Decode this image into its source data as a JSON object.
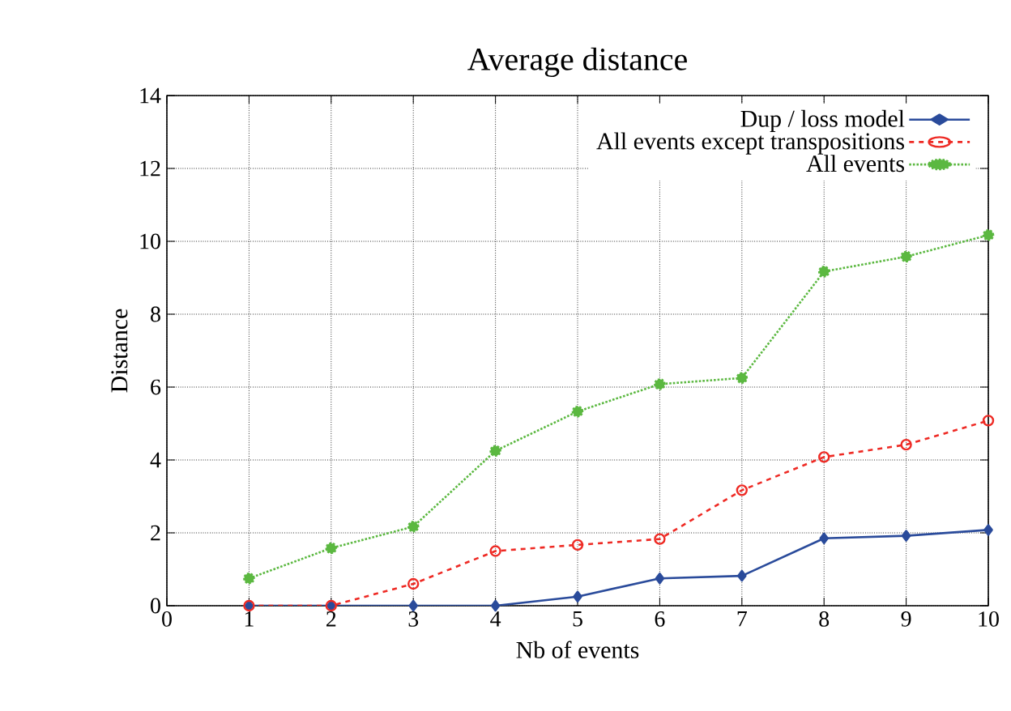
{
  "chart_data": {
    "type": "line",
    "title": "Average distance",
    "xlabel": "Nb of events",
    "ylabel": "Distance",
    "x": [
      1,
      2,
      3,
      4,
      5,
      6,
      7,
      8,
      9,
      10
    ],
    "xlim": [
      0,
      10
    ],
    "xticks": [
      0,
      1,
      2,
      3,
      4,
      5,
      6,
      7,
      8,
      9,
      10
    ],
    "ylim": [
      0,
      14
    ],
    "yticks": [
      0,
      2,
      4,
      6,
      8,
      10,
      12,
      14
    ],
    "grid": true,
    "legend": "top right",
    "series": [
      {
        "name": "Dup / loss model",
        "color": "#2a4b9b",
        "marker": "diamond",
        "line_style": "solid",
        "values": [
          0,
          0,
          0,
          0,
          0.25,
          0.75,
          0.82,
          1.85,
          1.92,
          2.08
        ]
      },
      {
        "name": "All events except transpositions",
        "color": "#ee2a24",
        "marker": "circle_open",
        "line_style": "dashed",
        "values": [
          0,
          0,
          0.6,
          1.5,
          1.67,
          1.83,
          3.17,
          4.08,
          4.42,
          5.08
        ]
      },
      {
        "name": "All events",
        "color": "#5bb840",
        "marker": "circle",
        "line_style": "dotted",
        "values": [
          0.75,
          1.58,
          2.17,
          4.25,
          5.33,
          6.08,
          6.25,
          9.17,
          9.58,
          10.17
        ]
      }
    ]
  }
}
